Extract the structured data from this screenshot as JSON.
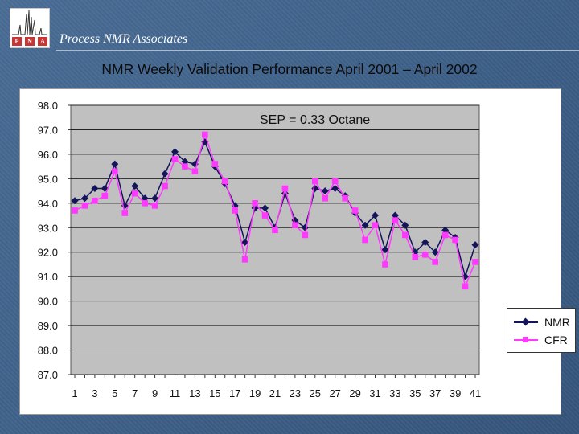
{
  "header": {
    "org_name": "Process NMR Associates",
    "logo_letters": [
      "P",
      "N",
      "A"
    ]
  },
  "slide": {
    "title": "NMR Weekly Validation Performance April 2001 – April 2002"
  },
  "colors": {
    "nmr": "#14145a",
    "cfr": "#ff38ff",
    "plot_bg": "#c0c0c0",
    "grid": "#222222"
  },
  "chart_data": {
    "type": "line",
    "title": "",
    "annotation": "SEP = 0.33 Octane",
    "xlabel": "",
    "ylabel": "",
    "x": [
      1,
      2,
      3,
      4,
      5,
      6,
      7,
      8,
      9,
      10,
      11,
      12,
      13,
      14,
      15,
      16,
      17,
      18,
      19,
      20,
      21,
      22,
      23,
      24,
      25,
      26,
      27,
      28,
      29,
      30,
      31,
      32,
      33,
      34,
      35,
      36,
      37,
      38,
      39,
      40,
      41
    ],
    "x_tick_labels": [
      "1",
      "3",
      "5",
      "7",
      "9",
      "11",
      "13",
      "15",
      "17",
      "19",
      "21",
      "23",
      "25",
      "27",
      "29",
      "31",
      "33",
      "35",
      "37",
      "39",
      "41"
    ],
    "ylim": [
      87.0,
      98.0
    ],
    "y_tick_labels": [
      "98.0",
      "97.0",
      "96.0",
      "95.0",
      "94.0",
      "93.0",
      "92.0",
      "91.0",
      "90.0",
      "89.0",
      "88.0",
      "87.0"
    ],
    "grid": true,
    "legend_position": "right",
    "series": [
      {
        "name": "NMR",
        "marker": "diamond",
        "values": [
          94.1,
          94.2,
          94.6,
          94.6,
          95.6,
          93.9,
          94.7,
          94.2,
          94.2,
          95.2,
          96.1,
          95.7,
          95.6,
          96.5,
          95.5,
          94.8,
          93.9,
          92.4,
          93.8,
          93.8,
          93.0,
          94.4,
          93.3,
          93.0,
          94.6,
          94.5,
          94.6,
          94.3,
          93.6,
          93.1,
          93.5,
          92.1,
          93.5,
          93.1,
          92.0,
          92.4,
          92.0,
          92.9,
          92.6,
          91.0,
          92.3
        ]
      },
      {
        "name": "CFR",
        "marker": "square",
        "values": [
          93.7,
          93.9,
          94.1,
          94.3,
          95.3,
          93.6,
          94.4,
          94.0,
          93.9,
          94.7,
          95.8,
          95.5,
          95.3,
          96.8,
          95.6,
          94.9,
          93.7,
          91.7,
          94.0,
          93.5,
          92.9,
          94.6,
          93.1,
          92.7,
          94.9,
          94.2,
          94.9,
          94.2,
          93.7,
          92.5,
          93.1,
          91.5,
          93.3,
          92.7,
          91.8,
          91.9,
          91.6,
          92.7,
          92.5,
          90.6,
          91.6
        ]
      }
    ]
  }
}
